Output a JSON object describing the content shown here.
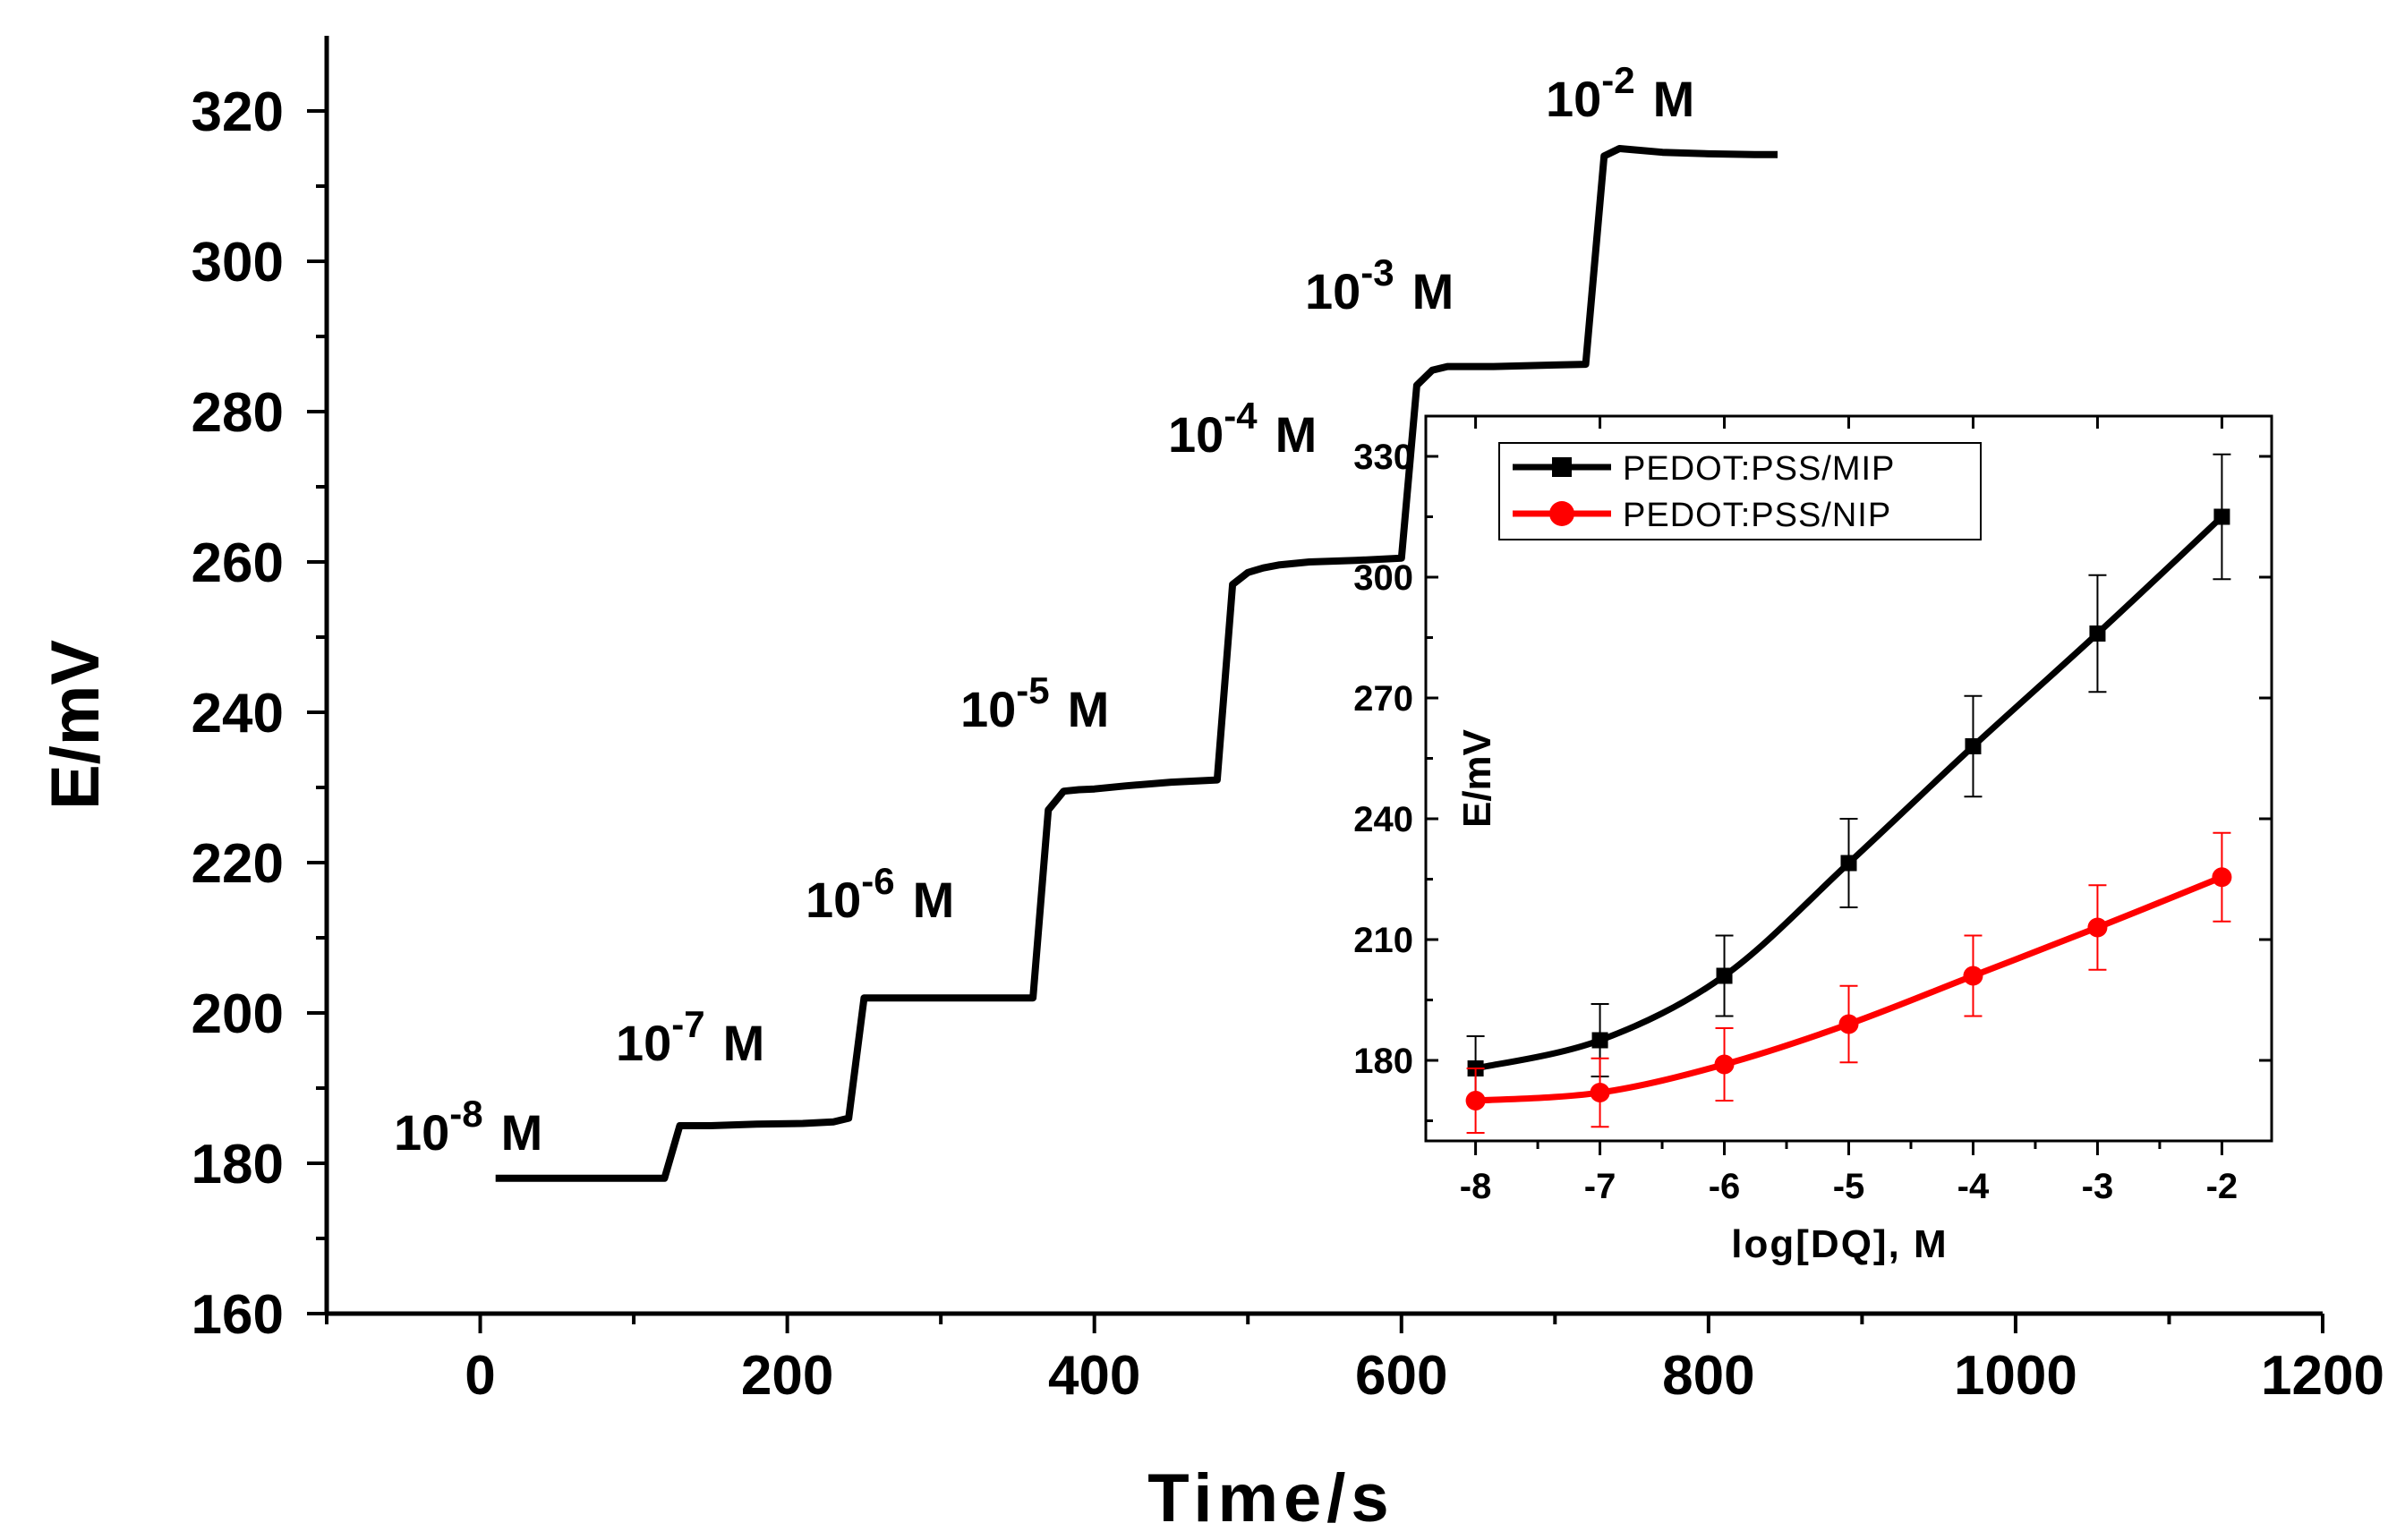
{
  "chart_data": [
    {
      "type": "line",
      "role": "main",
      "xlabel": "Time/s",
      "ylabel": "E/mV",
      "xlim": [
        -100,
        1200
      ],
      "ylim": [
        160,
        330
      ],
      "x_ticks": [
        "0",
        "200",
        "400",
        "600",
        "800",
        "1000",
        "1200"
      ],
      "y_ticks": [
        "160",
        "180",
        "200",
        "220",
        "240",
        "260",
        "280",
        "300",
        "320"
      ],
      "series": [
        {
          "name": "potential",
          "color": "#000000",
          "x": [
            10,
            30,
            60,
            90,
            120,
            130,
            150,
            180,
            210,
            230,
            240,
            250,
            270,
            300,
            330,
            360,
            370,
            380,
            390,
            400,
            420,
            450,
            480,
            490,
            500,
            510,
            520,
            540,
            570,
            600,
            610,
            620,
            630,
            660,
            700,
            720,
            732,
            742,
            770,
            800,
            830,
            845
          ],
          "y": [
            178,
            178,
            178,
            178,
            178,
            185,
            185,
            185.2,
            185.3,
            185.5,
            186,
            202,
            202,
            202,
            202,
            202,
            227,
            229.5,
            229.7,
            229.8,
            230.2,
            230.7,
            231,
            257,
            258.6,
            259.2,
            259.6,
            260,
            260.2,
            260.5,
            283.5,
            285.5,
            286,
            286,
            286.2,
            286.3,
            314,
            315,
            314.5,
            314.3,
            314.2,
            314.2
          ]
        }
      ],
      "annotations": [
        {
          "base": "10",
          "exp": "-8",
          "unit": "M"
        },
        {
          "base": "10",
          "exp": "-7",
          "unit": "M"
        },
        {
          "base": "10",
          "exp": "-6",
          "unit": "M"
        },
        {
          "base": "10",
          "exp": "-5",
          "unit": "M"
        },
        {
          "base": "10",
          "exp": "-4",
          "unit": "M"
        },
        {
          "base": "10",
          "exp": "-3",
          "unit": "M"
        },
        {
          "base": "10",
          "exp": "-2",
          "unit": "M"
        }
      ]
    },
    {
      "type": "line",
      "role": "inset",
      "xlabel": "log[DQ], M",
      "ylabel": "E/mV",
      "xlim": [
        -8.4,
        -1.6
      ],
      "ylim": [
        160,
        340
      ],
      "x_ticks": [
        "-8",
        "-7",
        "-6",
        "-5",
        "-4",
        "-3",
        "-2"
      ],
      "y_ticks": [
        "180",
        "210",
        "240",
        "270",
        "300",
        "330"
      ],
      "legend_position": "top-left",
      "series": [
        {
          "name": "PEDOT:PSS/MIP",
          "color": "#000000",
          "marker": "square",
          "x": [
            -8,
            -7,
            -6,
            -5,
            -4,
            -3,
            -2
          ],
          "y": [
            178,
            185,
            201,
            229,
            258,
            286,
            315
          ],
          "err": [
            8,
            9,
            10,
            11,
            12.5,
            14.5,
            15.5
          ]
        },
        {
          "name": "PEDOT:PSS/NIP",
          "color": "#ff0000",
          "marker": "circle",
          "x": [
            -8,
            -7,
            -6,
            -5,
            -4,
            -3,
            -2
          ],
          "y": [
            170,
            172,
            179,
            189,
            201,
            213,
            225.5
          ],
          "err": [
            8,
            8.5,
            9,
            9.5,
            10,
            10.5,
            11
          ]
        }
      ]
    }
  ]
}
